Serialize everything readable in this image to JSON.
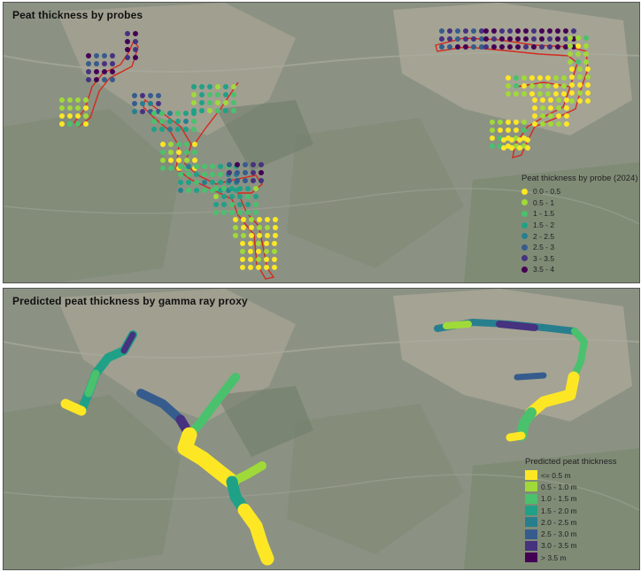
{
  "panels": {
    "top": {
      "title": "Peat thickness by probes",
      "legend_title": "Peat thickness by probe (2024)",
      "legend": [
        {
          "label": "0.0 - 0.5",
          "color": "#fde725"
        },
        {
          "label": "0.5 - 1",
          "color": "#a0da39"
        },
        {
          "label": "1 - 1.5",
          "color": "#4ac16d"
        },
        {
          "label": "1.5 - 2",
          "color": "#1fa187"
        },
        {
          "label": "2 - 2.5",
          "color": "#277f8e"
        },
        {
          "label": "2.5 - 3",
          "color": "#365c8d"
        },
        {
          "label": "3 - 3.5",
          "color": "#46327e"
        },
        {
          "label": "3.5 - 4",
          "color": "#440154"
        }
      ]
    },
    "bottom": {
      "title": "Predicted peat thickness by gamma ray proxy",
      "legend_title": "Predicted peat thickness",
      "legend": [
        {
          "label": "<= 0.5 m",
          "color": "#fde725"
        },
        {
          "label": "0.5 - 1.0 m",
          "color": "#a0da39"
        },
        {
          "label": "1.0 - 1.5 m",
          "color": "#4ac16d"
        },
        {
          "label": "1.5 - 2.0 m",
          "color": "#1fa187"
        },
        {
          "label": "2.0 - 2.5 m",
          "color": "#277f8e"
        },
        {
          "label": "2.5 - 3.0 m",
          "color": "#365c8d"
        },
        {
          "label": "3.0 - 3.5 m",
          "color": "#46327e"
        },
        {
          "label": "> 3.5 m",
          "color": "#440154"
        }
      ]
    }
  },
  "colors": {
    "survey_route": "#d42a1e",
    "map_background": "#8a9182",
    "bog": "#a9a595"
  }
}
